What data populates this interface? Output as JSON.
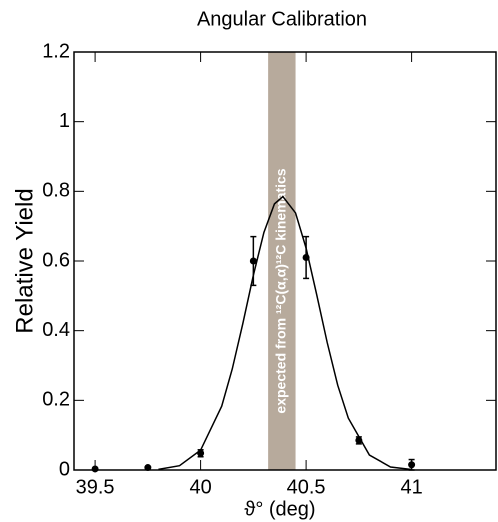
{
  "chart_data": {
    "type": "scatter",
    "title": "Angular Calibration",
    "xlabel": "ϑ° (deg)",
    "ylabel": "Relative Yield",
    "band": {
      "x": [
        40.32,
        40.45
      ],
      "color": "#b7aa9c",
      "label": "expected from ¹²C(α,α)¹²C kinematics"
    },
    "series": [
      {
        "kind": "points",
        "color": "#000000",
        "x": [
          39.5,
          39.75,
          40,
          40.25,
          40.5,
          40.75,
          41
        ],
        "values": [
          0.003,
          0.007,
          0.048,
          0.6,
          0.61,
          0.085,
          0.015
        ],
        "errors": [
          null,
          null,
          0.01,
          0.07,
          0.06,
          0.01,
          0.015
        ]
      },
      {
        "kind": "line",
        "color": "#000000",
        "x": [
          39.8,
          39.9,
          40.0,
          40.1,
          40.15,
          40.2,
          40.25,
          40.3,
          40.35,
          40.39,
          40.45,
          40.5,
          40.55,
          40.6,
          40.65,
          40.7,
          40.8,
          40.9,
          41.0
        ],
        "values": [
          0.0019,
          0.0124,
          0.057,
          0.183,
          0.29,
          0.42,
          0.559,
          0.682,
          0.764,
          0.785,
          0.738,
          0.637,
          0.504,
          0.366,
          0.243,
          0.149,
          0.043,
          0.0087,
          0.0013
        ]
      }
    ],
    "xlim": [
      39.4,
      41.4
    ],
    "xticks": [
      39.5,
      40,
      40.5,
      41
    ],
    "ylim": [
      0,
      1.2
    ],
    "yticks": [
      0,
      0.2,
      0.4,
      0.6,
      0.8,
      1,
      1.2
    ]
  }
}
